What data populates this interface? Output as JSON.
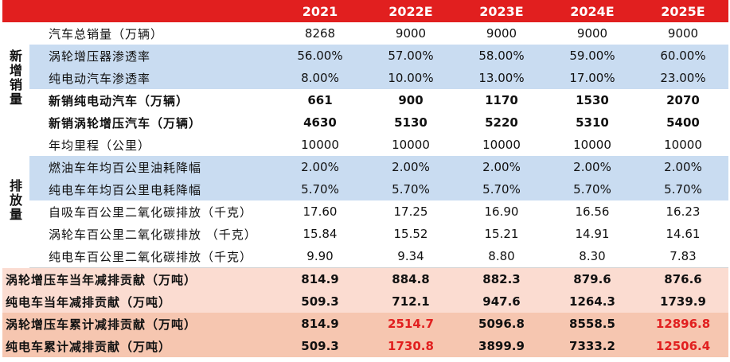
{
  "header": {
    "years": [
      "2021",
      "2022E",
      "2023E",
      "2024E",
      "2025E"
    ]
  },
  "groups": {
    "sales": "新增销量",
    "emission": "排放量"
  },
  "rows": [
    {
      "label": "汽车总销量（万辆）",
      "values": [
        "8268",
        "9000",
        "9000",
        "9000",
        "9000"
      ]
    },
    {
      "label": "涡轮增压器渗透率",
      "values": [
        "56.00%",
        "57.00%",
        "58.00%",
        "59.00%",
        "60.00%"
      ]
    },
    {
      "label": "纯电动汽车渗透率",
      "values": [
        "8.00%",
        "10.00%",
        "13.00%",
        "17.00%",
        "23.00%"
      ]
    },
    {
      "label": "新销纯电动汽车（万辆）",
      "values": [
        "661",
        "900",
        "1170",
        "1530",
        "2070"
      ]
    },
    {
      "label": "新销涡轮增压汽车（万辆）",
      "values": [
        "4630",
        "5130",
        "5220",
        "5310",
        "5400"
      ]
    },
    {
      "label": "年均里程（公里）",
      "values": [
        "10000",
        "10000",
        "10000",
        "10000",
        "10000"
      ]
    },
    {
      "label": "燃油车年均百公里油耗降幅",
      "values": [
        "2.00%",
        "2.00%",
        "2.00%",
        "2.00%",
        "2.00%"
      ]
    },
    {
      "label": "纯电车年均百公里电耗降幅",
      "values": [
        "5.70%",
        "5.70%",
        "5.70%",
        "5.70%",
        "5.70%"
      ]
    },
    {
      "label": "自吸车百公里二氧化碳排放（千克）",
      "values": [
        "17.60",
        "17.25",
        "16.90",
        "16.56",
        "16.23"
      ]
    },
    {
      "label": "涡轮车百公里二氧化碳排放 （千克）",
      "values": [
        "15.84",
        "15.52",
        "15.21",
        "14.91",
        "14.61"
      ]
    },
    {
      "label": "纯电车百公里二氧化碳排放（千克）",
      "values": [
        "9.90",
        "9.34",
        "8.80",
        "8.30",
        "7.83"
      ]
    },
    {
      "label": "涡轮增压车当年减排贡献（万吨）",
      "values": [
        "814.9",
        "884.8",
        "882.3",
        "879.6",
        "876.6"
      ]
    },
    {
      "label": "纯电车当年减排贡献（万吨）",
      "values": [
        "509.3",
        "712.1",
        "947.6",
        "1264.3",
        "1739.9"
      ]
    },
    {
      "label": "涡轮增压车累计减排贡献（万吨）",
      "values": [
        "814.9",
        "2514.7",
        "5096.8",
        "8558.5",
        "12896.8"
      ]
    },
    {
      "label": "纯电车累计减排贡献（万吨）",
      "values": [
        "509.3",
        "1730.8",
        "3899.9",
        "7333.2",
        "12506.4"
      ]
    }
  ],
  "colors": {
    "header_bg": "#e11f1f",
    "highlight_blue": "#c9dcf1",
    "highlight_pink": "#fbdcd1",
    "highlight_pink_dark": "#f6c6b0",
    "emphasis_red": "#e11f1f"
  }
}
